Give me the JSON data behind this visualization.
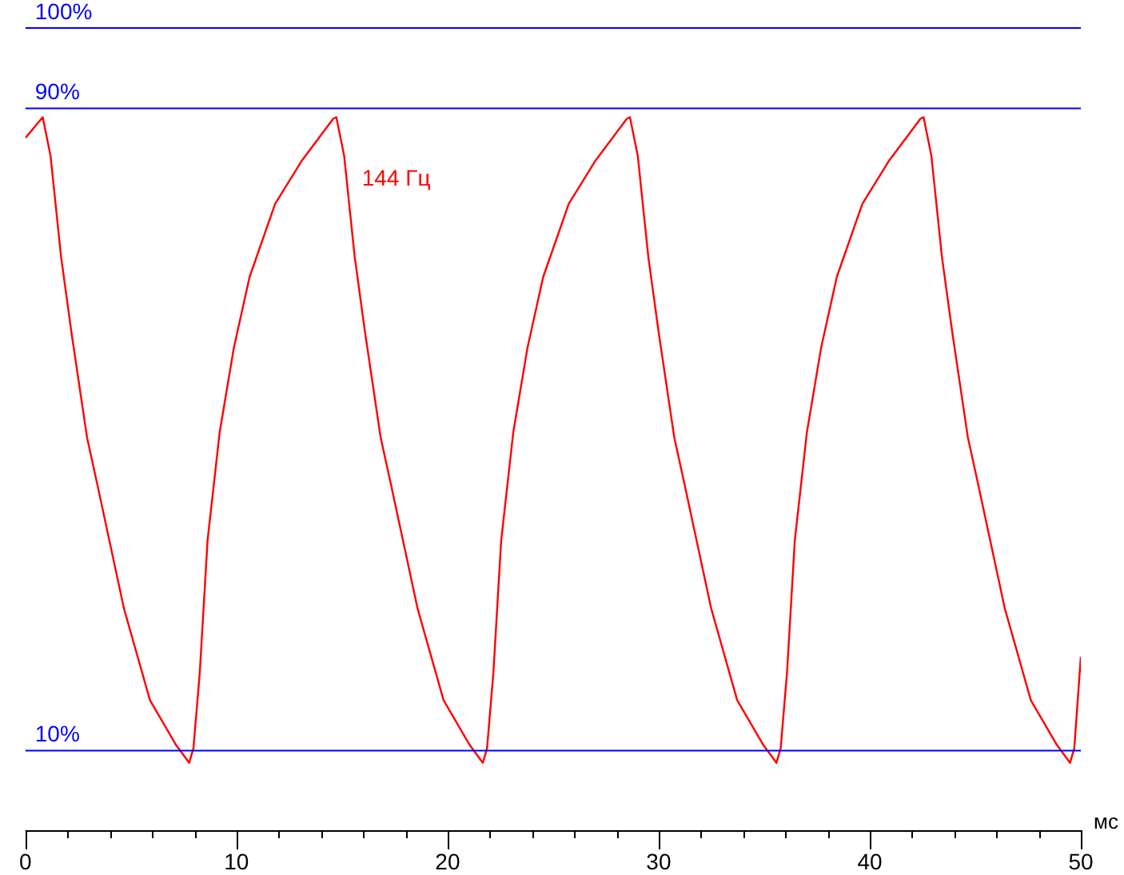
{
  "chart_data": {
    "type": "line",
    "xlabel": "мс",
    "xlim": [
      0,
      50
    ],
    "ylim": [
      0,
      100
    ],
    "xticks": [
      0,
      {
        "value": 2,
        "label": null
      },
      {
        "value": 4,
        "label": null
      },
      {
        "value": 6,
        "label": null
      },
      {
        "value": 8,
        "label": null
      },
      10,
      {
        "value": 12,
        "label": null
      },
      {
        "value": 14,
        "label": null
      },
      {
        "value": 16,
        "label": null
      },
      {
        "value": 18,
        "label": null
      },
      20,
      {
        "value": 22,
        "label": null
      },
      {
        "value": 24,
        "label": null
      },
      {
        "value": 26,
        "label": null
      },
      {
        "value": 28,
        "label": null
      },
      30,
      {
        "value": 32,
        "label": null
      },
      {
        "value": 34,
        "label": null
      },
      {
        "value": 36,
        "label": null
      },
      {
        "value": 38,
        "label": null
      },
      40,
      {
        "value": 42,
        "label": null
      },
      {
        "value": 44,
        "label": null
      },
      {
        "value": 46,
        "label": null
      },
      {
        "value": 48,
        "label": null
      },
      50
    ],
    "tick_labels": "x",
    "grid": false,
    "legend": false,
    "marker": "none",
    "line_style": "solid",
    "ref_lines": [
      {
        "axis": "y",
        "value": 10,
        "label": "10%",
        "color": "#0000ff"
      },
      {
        "axis": "y",
        "value": 90,
        "label": "90%",
        "color": "#0000ff"
      },
      {
        "axis": "y",
        "value": 100,
        "label": "100%",
        "color": "#0000ff"
      }
    ],
    "series": [
      {
        "name": "144 Гц",
        "color": "#ff0000",
        "x": [
          0,
          0.82,
          1.19,
          1.69,
          2.18,
          2.92,
          3.42,
          4.67,
          5.9,
          7.14,
          7.76,
          7.96,
          8.26,
          8.63,
          9.2,
          9.87,
          10.62,
          11.83,
          13.1,
          14.58,
          14.73,
          15.1,
          15.6,
          16.09,
          16.83,
          17.33,
          18.58,
          19.81,
          21.05,
          21.67,
          21.87,
          22.17,
          22.54,
          23.11,
          23.78,
          24.53,
          25.74,
          27.01,
          28.49,
          28.64,
          29.01,
          29.51,
          30,
          30.74,
          31.24,
          32.49,
          33.72,
          34.96,
          35.58,
          35.78,
          36.08,
          36.45,
          37.02,
          37.69,
          38.44,
          39.65,
          40.92,
          42.4,
          42.55,
          42.92,
          43.42,
          43.91,
          44.65,
          45.15,
          46.4,
          47.63,
          48.87,
          49.49,
          49.69,
          50
        ],
        "values": [
          86.2,
          88.8,
          84,
          71.4,
          62,
          48.9,
          42.9,
          27.6,
          16.2,
          10.6,
          8.4,
          10.2,
          19.6,
          36.1,
          49.5,
          60,
          68.9,
          78,
          83.4,
          88.6,
          88.8,
          84,
          71.4,
          62,
          48.9,
          42.9,
          27.6,
          16.2,
          10.6,
          8.4,
          10.2,
          19.6,
          36.1,
          49.5,
          60,
          68.9,
          78,
          83.4,
          88.6,
          88.8,
          84,
          71.4,
          62,
          48.9,
          42.9,
          27.6,
          16.2,
          10.6,
          8.4,
          10.2,
          19.6,
          36.1,
          49.5,
          60,
          68.9,
          78,
          83.4,
          88.6,
          88.8,
          84,
          71.4,
          62,
          48.9,
          42.9,
          27.6,
          16.2,
          10.6,
          8.4,
          10.2,
          21.6
        ]
      }
    ]
  }
}
